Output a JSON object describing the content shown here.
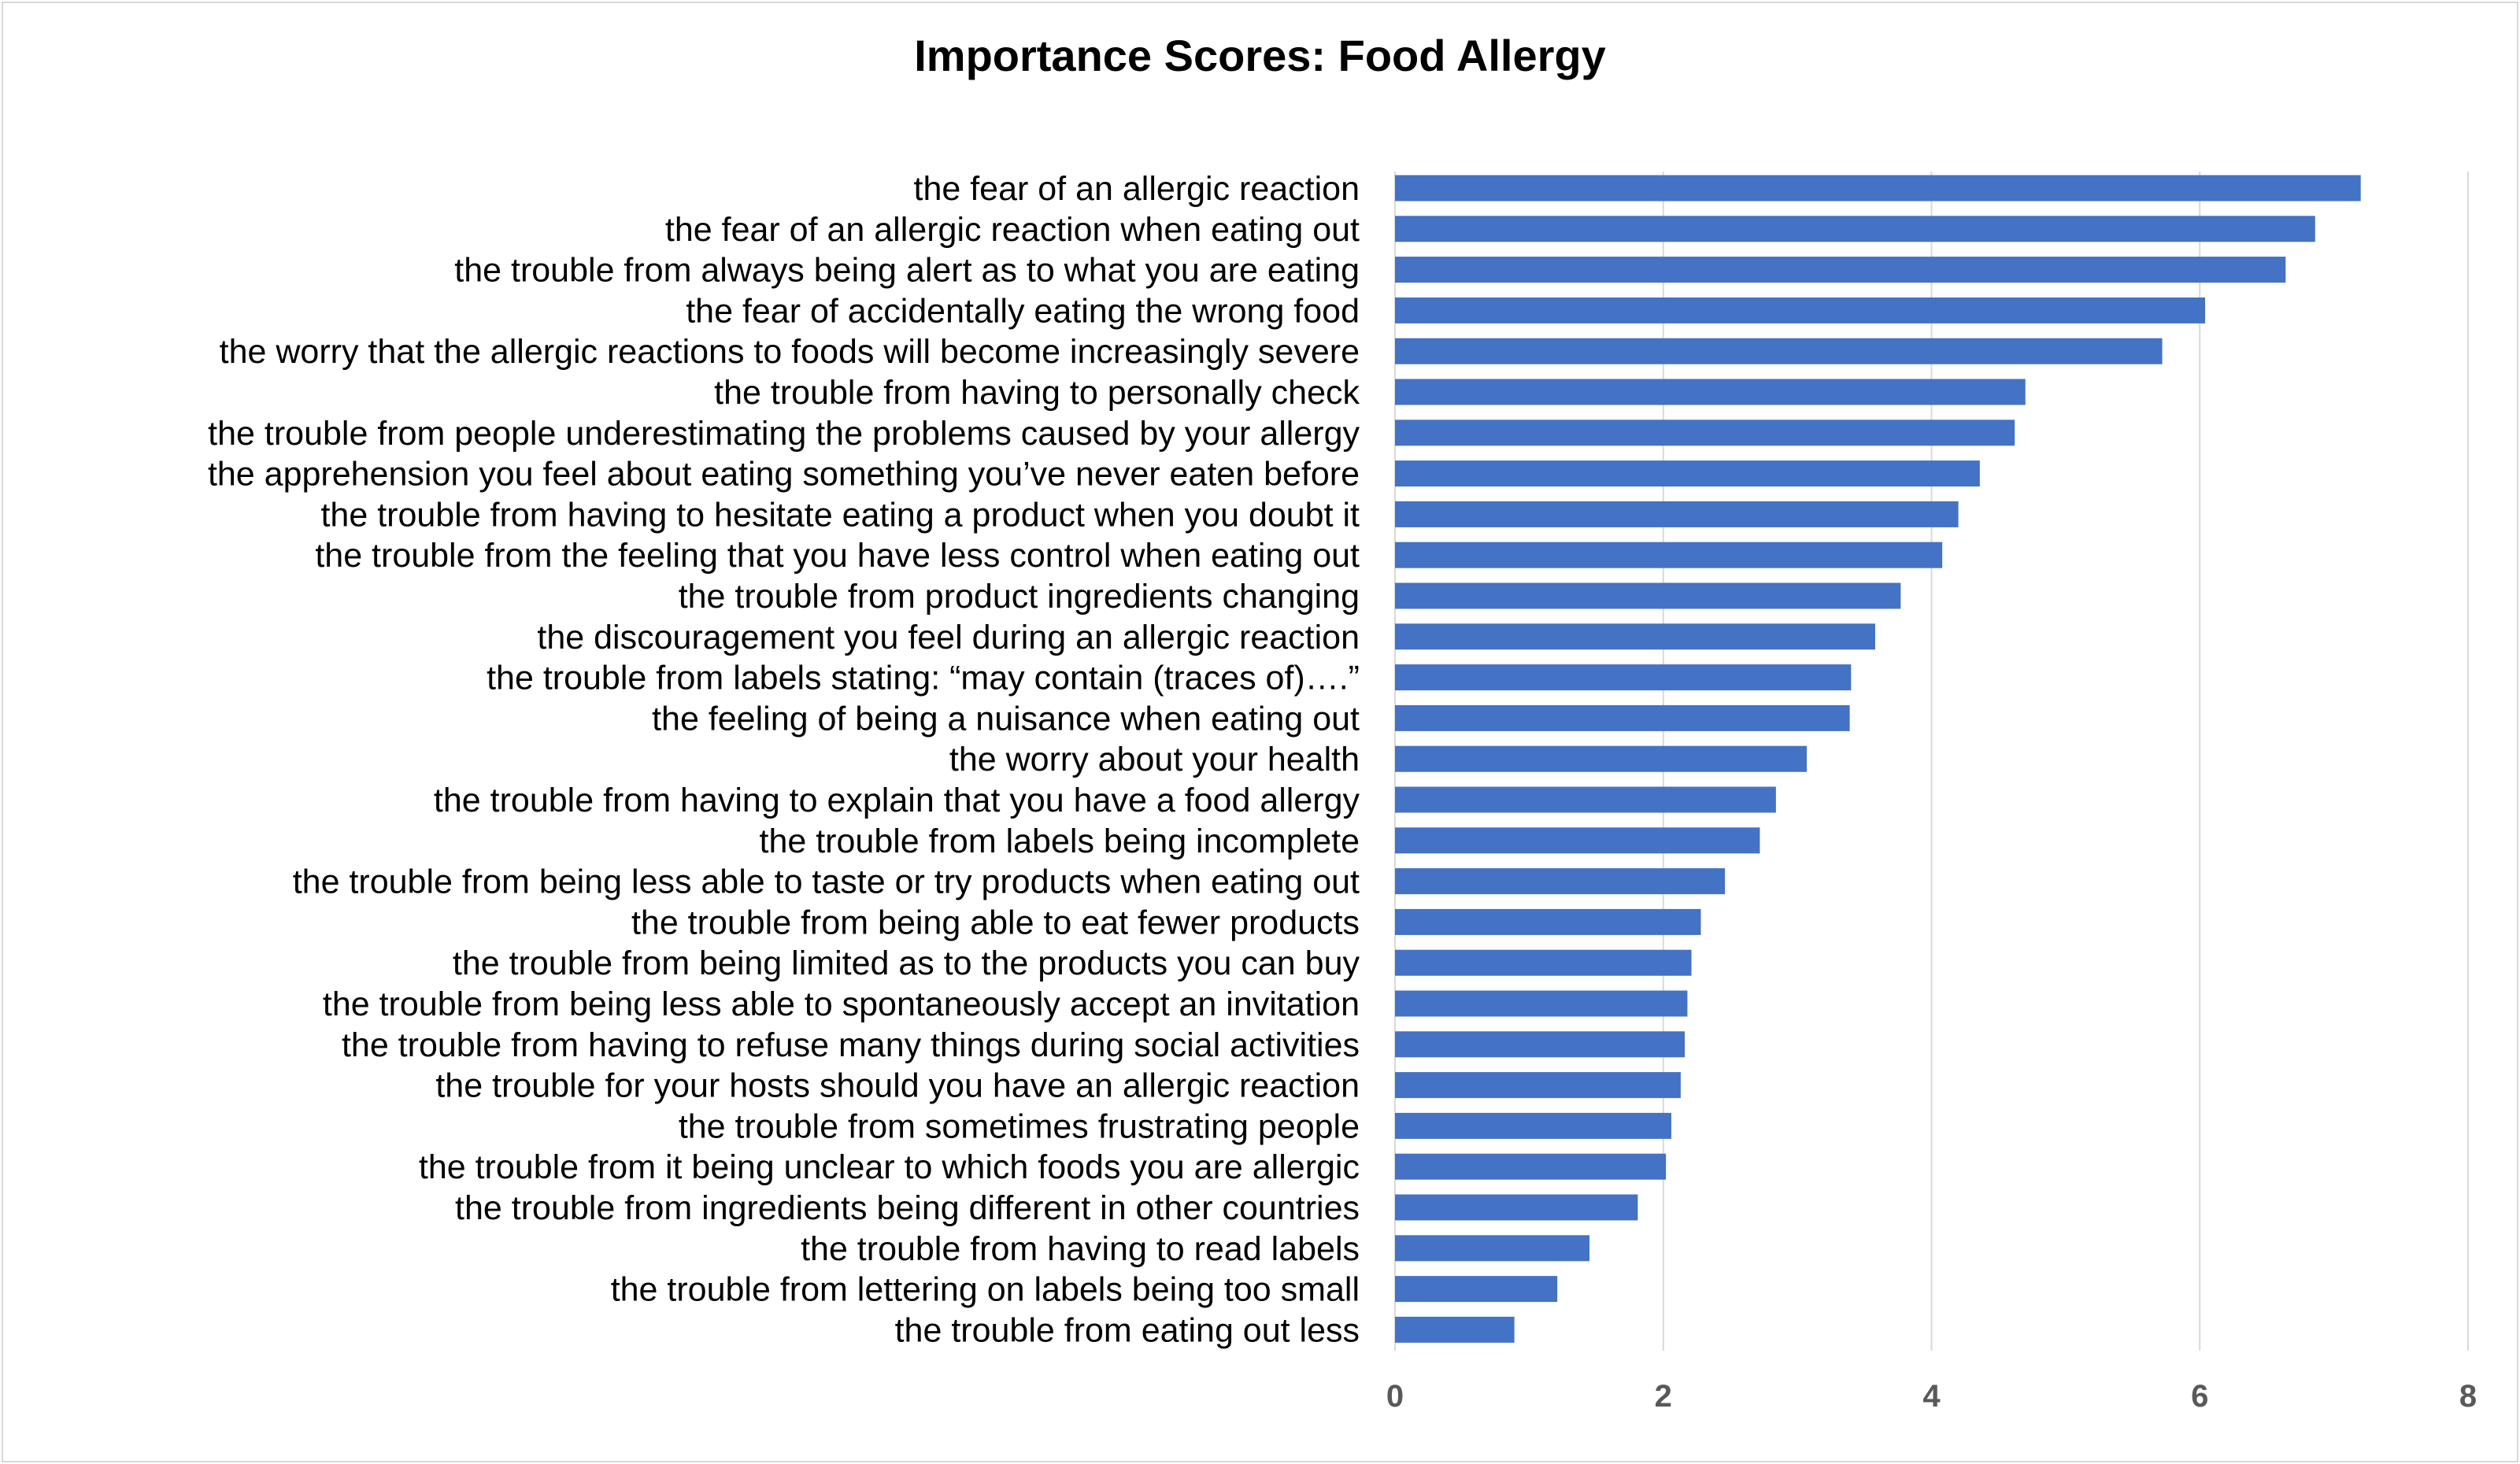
{
  "chart_data": {
    "type": "bar",
    "orientation": "horizontal",
    "title": "Importance Scores: Food Allergy",
    "xlabel": "",
    "ylabel": "",
    "xlim": [
      0,
      8
    ],
    "xticks": [
      0,
      2,
      4,
      6,
      8
    ],
    "xtick_labels": [
      "0",
      "2",
      "4",
      "6",
      "8"
    ],
    "grid": "vertical",
    "legend": "none",
    "bar_color": "#4472C4",
    "grid_color": "#d9d9d9",
    "categories": [
      "the fear  of an allergic reaction",
      "the fear of an allergic reaction when eating out ",
      "the trouble from always being alert as to what you are eating",
      "the fear  of accidentally eating the wrong food",
      "the worry that the allergic reactions to foods will become increasingly severe",
      "the trouble from having to personally check ",
      "the trouble from people underestimating the problems caused by your allergy",
      "the apprehension you feel about eating something you’ve never eaten before",
      "the trouble from having to hesitate eating a product when you doubt it",
      "the trouble from the feeling that you have less control  when eating out",
      "the trouble from product ingredients changing",
      "the discouragement you feel during an allergic reaction",
      "the trouble from labels stating: “may contain (traces of)….”",
      "the feeling of being a nuisance when eating out ",
      "the worry about your health",
      "the trouble from having to explain that you have a food allergy",
      "the trouble from labels being incomplete",
      "the trouble from being less able to taste or try products when eating out",
      "the trouble from being able to eat fewer products",
      "the trouble from being limited as to the products you can buy",
      "the trouble from being less able to spontaneously accept an invitation ",
      "the trouble from having to refuse many things during social activities",
      "the trouble for your hosts should you have an allergic reaction",
      "the trouble from sometimes frustrating people ",
      "the trouble from it being unclear to which foods you are allergic",
      "the trouble from ingredients being different in other countries ",
      "the trouble from having to read labels",
      "the trouble from lettering on labels being too small",
      "the trouble from eating out less"
    ],
    "values": [
      7.2,
      6.86,
      6.64,
      6.04,
      5.72,
      4.7,
      4.62,
      4.36,
      4.2,
      4.08,
      3.77,
      3.58,
      3.4,
      3.39,
      3.07,
      2.84,
      2.72,
      2.46,
      2.28,
      2.21,
      2.18,
      2.16,
      2.13,
      2.06,
      2.02,
      1.81,
      1.45,
      1.21,
      0.89
    ]
  }
}
